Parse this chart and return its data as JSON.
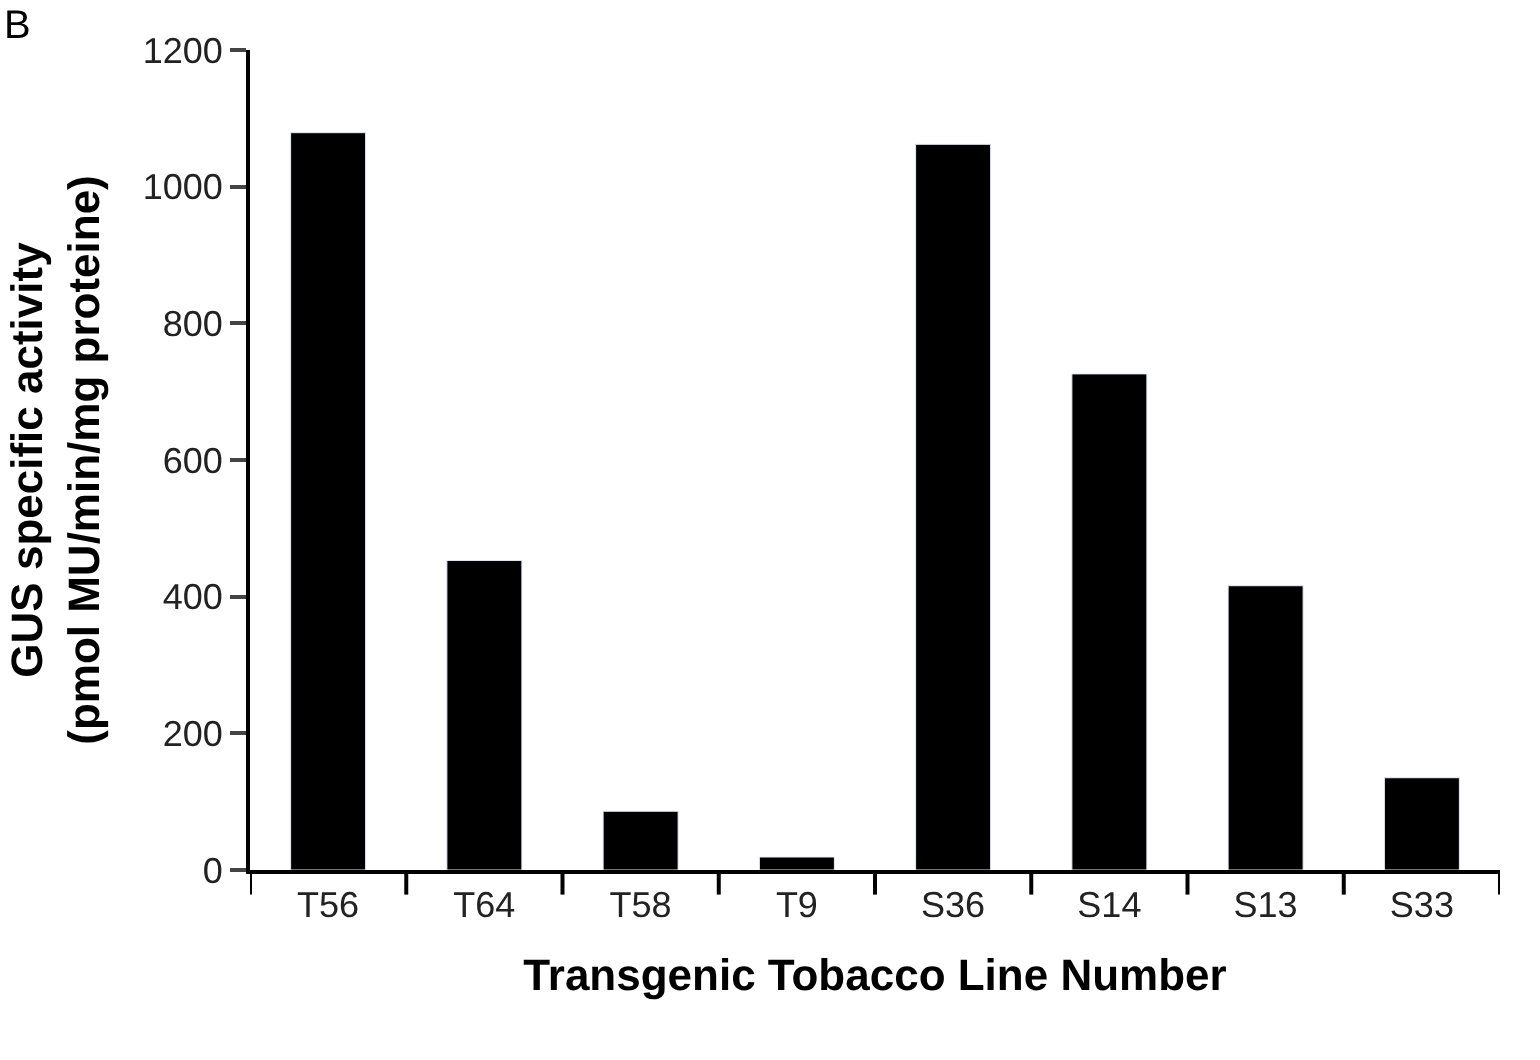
{
  "chart_data": {
    "type": "bar",
    "xlabel": "Transgenic Tobacco Line Number",
    "ylabel": "GUS specific activity\n(pmol MU/min/mg proteine)",
    "categories": [
      "T56",
      "T64",
      "T58",
      "T9",
      "S36",
      "S14",
      "S13",
      "S33"
    ],
    "values": [
      1079,
      453,
      86,
      19,
      1062,
      726,
      416,
      135
    ],
    "color": "#000000",
    "ylim": [
      0,
      1200
    ],
    "yticks": [
      0,
      200,
      400,
      600,
      800,
      1000,
      1200
    ],
    "annotations": [
      "B"
    ]
  }
}
